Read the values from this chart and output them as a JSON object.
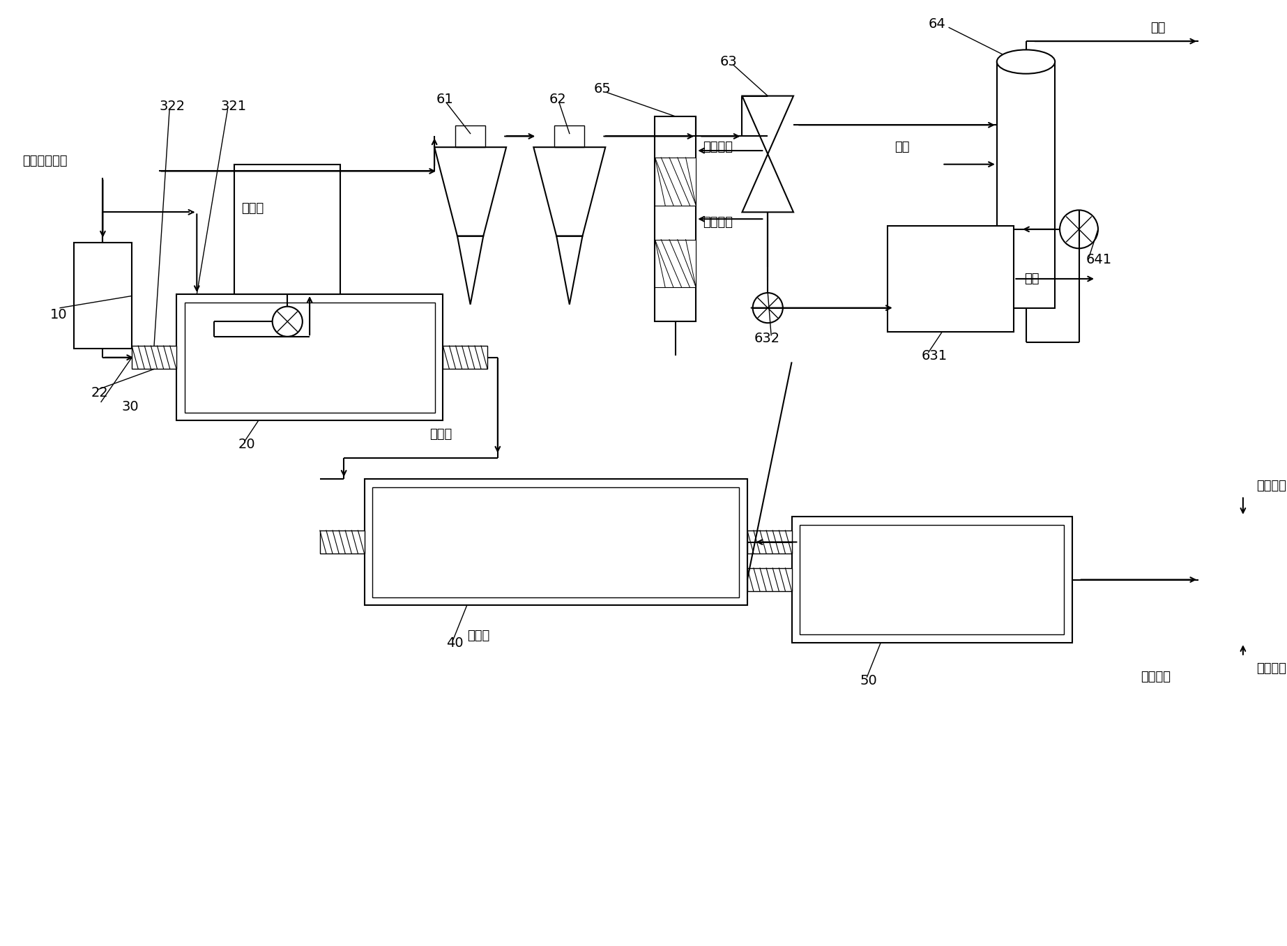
{
  "labels": {
    "san_yuan": "三元电池黑粉",
    "nong_liu_suan": "浓硫酸",
    "suan_hua_liao": "酸化料",
    "bei_shao_liao": "焙烧料",
    "yuan_shui": "原水",
    "xun_huan_hui_shui": "循环回水",
    "xun_huan_shang_shui": "循环上水",
    "wai_pai": "外排",
    "zhi_suan": "制酸",
    "hou_xu_gong_xu": "后续工序",
    "xun_huan_hui_shui2": "循环回水",
    "xun_huan_shang_shui2": "循环上水",
    "n10": "10",
    "n20": "20",
    "n22": "22",
    "n30": "30",
    "n40": "40",
    "n50": "50",
    "n61": "61",
    "n62": "62",
    "n63": "63",
    "n64": "64",
    "n65": "65",
    "n321": "321",
    "n322": "322",
    "n631": "631",
    "n632": "632",
    "n641": "641"
  },
  "colors": {
    "line": "#000000",
    "fill": "#ffffff",
    "text": "#000000"
  },
  "figsize": [
    18.46,
    13.57
  ],
  "dpi": 100,
  "xlim": [
    0,
    18.46
  ],
  "ylim": [
    0,
    13.57
  ]
}
